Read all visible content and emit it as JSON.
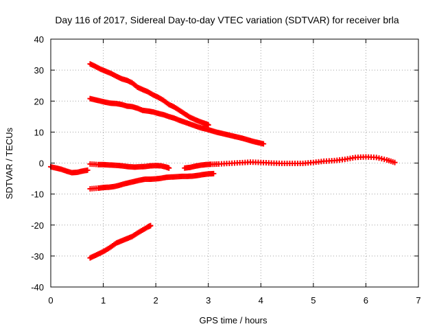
{
  "chart_data": {
    "type": "scatter",
    "title": "Day 116 of 2017, Sidereal Day-to-day VTEC variation (SDTVAR) for receiver brla",
    "xlabel": "GPS time / hours",
    "ylabel": "SDTVAR / TECUs",
    "xlim": [
      0,
      7
    ],
    "ylim": [
      -40,
      40
    ],
    "xticks": [
      "0",
      "1",
      "2",
      "3",
      "4",
      "5",
      "6",
      "7"
    ],
    "yticks": [
      "40",
      "30",
      "20",
      "10",
      "0",
      "-10",
      "-20",
      "-30",
      "-40"
    ],
    "grid": true,
    "series_color": "#ff0000",
    "marker": "+",
    "series": [
      {
        "x": [
          0.0,
          0.1,
          0.2,
          0.3,
          0.4,
          0.5,
          0.6,
          0.7
        ],
        "y": [
          -1.2,
          -1.6,
          -2.0,
          -2.6,
          -3.1,
          -3.0,
          -2.6,
          -2.3
        ]
      },
      {
        "x": [
          0.75,
          0.9,
          1.0,
          1.1,
          1.2,
          1.3,
          1.4,
          1.5,
          1.6,
          1.7,
          1.8,
          1.9,
          2.0,
          2.1,
          2.2,
          2.25
        ],
        "y": [
          -0.3,
          -0.5,
          -0.5,
          -0.6,
          -0.7,
          -0.8,
          -1.0,
          -1.2,
          -1.3,
          -1.2,
          -1.1,
          -0.9,
          -0.8,
          -0.9,
          -1.3,
          -1.6
        ]
      },
      {
        "x": [
          0.75,
          0.9,
          1.0,
          1.1,
          1.2,
          1.3,
          1.4,
          1.5,
          1.6,
          1.7,
          1.8,
          1.9,
          2.0,
          2.1,
          2.2,
          2.3,
          2.4,
          2.5,
          2.6,
          2.7,
          2.8,
          2.9,
          3.0,
          3.1
        ],
        "y": [
          -8.3,
          -8.1,
          -7.9,
          -7.8,
          -7.6,
          -7.2,
          -6.7,
          -6.3,
          -5.9,
          -5.5,
          -5.2,
          -5.2,
          -5.1,
          -4.9,
          -4.6,
          -4.5,
          -4.4,
          -4.3,
          -4.3,
          -4.2,
          -4.0,
          -3.7,
          -3.5,
          -3.4
        ]
      },
      {
        "x": [
          2.55,
          2.65,
          2.75,
          2.85,
          2.95,
          3.05,
          3.2,
          3.4,
          3.6,
          3.8,
          4.0,
          4.2,
          4.4,
          4.6,
          4.8,
          5.0,
          5.2,
          5.4,
          5.6,
          5.8,
          6.0,
          6.2,
          6.4,
          6.55
        ],
        "y": [
          -1.6,
          -1.4,
          -1.0,
          -0.7,
          -0.5,
          -0.4,
          -0.3,
          -0.1,
          0.1,
          0.3,
          0.2,
          0.0,
          -0.1,
          -0.1,
          -0.1,
          0.2,
          0.6,
          0.8,
          1.2,
          1.8,
          2.0,
          1.8,
          1.0,
          0.2
        ]
      },
      {
        "x": [
          0.75,
          0.85,
          0.95,
          1.05,
          1.15,
          1.25,
          1.35,
          1.45,
          1.55,
          1.65,
          1.75,
          1.85,
          1.95,
          2.05,
          2.15,
          2.25,
          2.35,
          2.45,
          2.55,
          2.65,
          2.75,
          2.85,
          2.95,
          3.0
        ],
        "y": [
          32.0,
          31.2,
          30.3,
          29.6,
          28.9,
          28.0,
          27.2,
          26.7,
          25.9,
          24.5,
          23.7,
          23.0,
          22.0,
          21.2,
          20.2,
          18.9,
          18.1,
          17.0,
          15.9,
          14.8,
          14.0,
          13.3,
          12.7,
          12.3
        ]
      },
      {
        "x": [
          0.75,
          0.85,
          0.95,
          1.05,
          1.15,
          1.25,
          1.35,
          1.45,
          1.55,
          1.65,
          1.75,
          1.85,
          1.95,
          2.05,
          2.15,
          2.25,
          2.35,
          2.45,
          2.55,
          2.65,
          2.75,
          2.85,
          2.95,
          3.05,
          3.15,
          3.25,
          3.35,
          3.45,
          3.55,
          3.65,
          3.75,
          3.85,
          3.95,
          4.05
        ],
        "y": [
          20.8,
          20.4,
          20.0,
          19.6,
          19.3,
          19.2,
          18.9,
          18.4,
          18.2,
          17.7,
          17.0,
          16.8,
          16.5,
          16.0,
          15.6,
          15.0,
          14.5,
          13.8,
          13.2,
          12.6,
          12.0,
          11.4,
          11.0,
          10.5,
          10.0,
          9.6,
          9.2,
          8.8,
          8.4,
          8.0,
          7.5,
          7.0,
          6.6,
          6.2
        ]
      },
      {
        "x": [
          0.75,
          0.85,
          0.95,
          1.05,
          1.15,
          1.25,
          1.35,
          1.45,
          1.55,
          1.65,
          1.75,
          1.85,
          1.9
        ],
        "y": [
          -30.6,
          -29.8,
          -29.0,
          -28.1,
          -27.0,
          -25.8,
          -25.1,
          -24.4,
          -23.7,
          -22.6,
          -21.6,
          -20.6,
          -20.2
        ]
      }
    ]
  }
}
